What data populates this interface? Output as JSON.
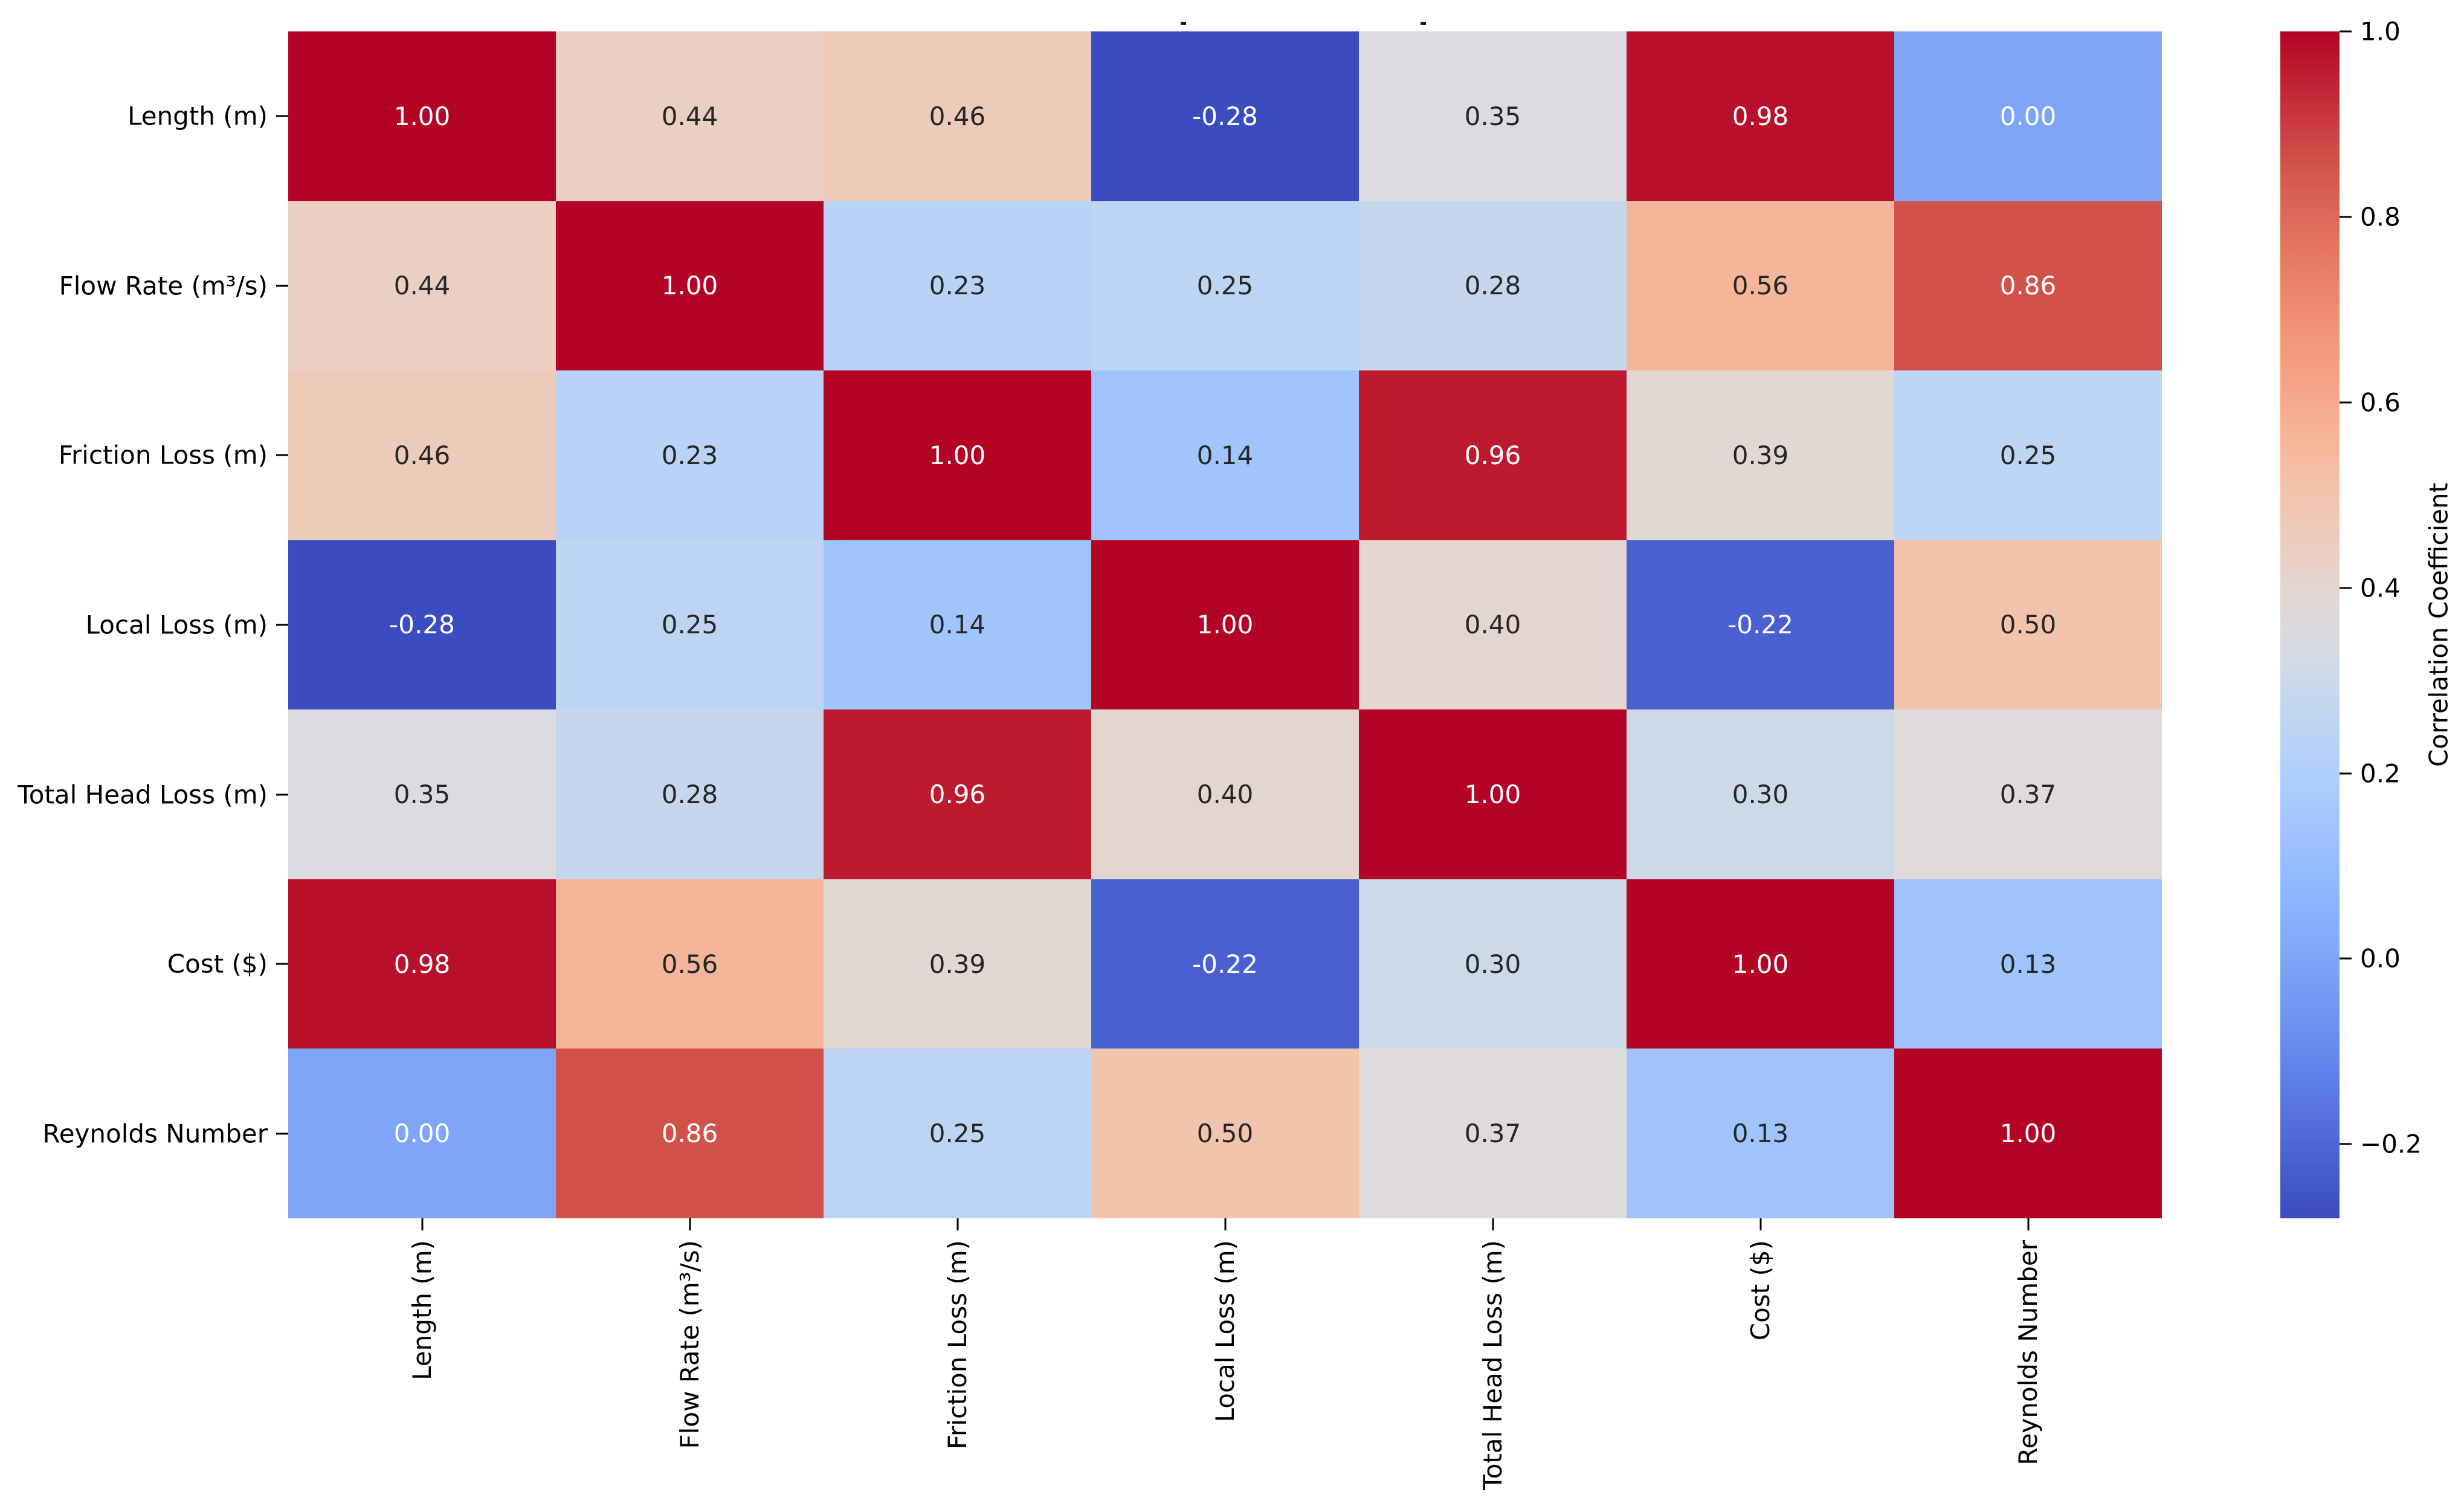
{
  "chart_data": {
    "type": "heatmap",
    "categories": [
      "Length (m)",
      "Flow Rate (m³/s)",
      "Friction Loss (m)",
      "Local Loss (m)",
      "Total Head Loss (m)",
      "Cost ($)",
      "Reynolds Number"
    ],
    "matrix": [
      [
        1.0,
        0.44,
        0.46,
        -0.28,
        0.35,
        0.98,
        0.0
      ],
      [
        0.44,
        1.0,
        0.23,
        0.25,
        0.28,
        0.56,
        0.86
      ],
      [
        0.46,
        0.23,
        1.0,
        0.14,
        0.96,
        0.39,
        0.25
      ],
      [
        -0.28,
        0.25,
        0.14,
        1.0,
        0.4,
        -0.22,
        0.5
      ],
      [
        0.35,
        0.28,
        0.96,
        0.4,
        1.0,
        0.3,
        0.37
      ],
      [
        0.98,
        0.56,
        0.39,
        -0.22,
        0.3,
        1.0,
        0.13
      ],
      [
        0.0,
        0.86,
        0.25,
        0.5,
        0.37,
        0.13,
        1.0
      ]
    ],
    "value_format_decimals": 2,
    "annotation_colors": {
      "dark": "#262626",
      "light": "#ffffff"
    },
    "colorbar": {
      "label": "Correlation Coefficient",
      "tick_labels": [
        "1.0",
        "0.8",
        "0.6",
        "0.4",
        "0.2",
        "0.0",
        "−0.2"
      ],
      "tick_values": [
        1.0,
        0.8,
        0.6,
        0.4,
        0.2,
        0.0,
        -0.2
      ],
      "vmin": -0.28,
      "vmax": 1.0,
      "position": "right"
    },
    "colormap": {
      "name": "coolwarm",
      "stops": [
        [
          0.0,
          "#3b4cc0"
        ],
        [
          0.125,
          "#6282ea"
        ],
        [
          0.25,
          "#88b0fe"
        ],
        [
          0.375,
          "#afd1fc"
        ],
        [
          0.5,
          "#dddddd"
        ],
        [
          0.625,
          "#f6c0a6"
        ],
        [
          0.75,
          "#f39375"
        ],
        [
          0.875,
          "#d65c4e"
        ],
        [
          1.0,
          "#b40426"
        ]
      ]
    },
    "grid": false
  }
}
